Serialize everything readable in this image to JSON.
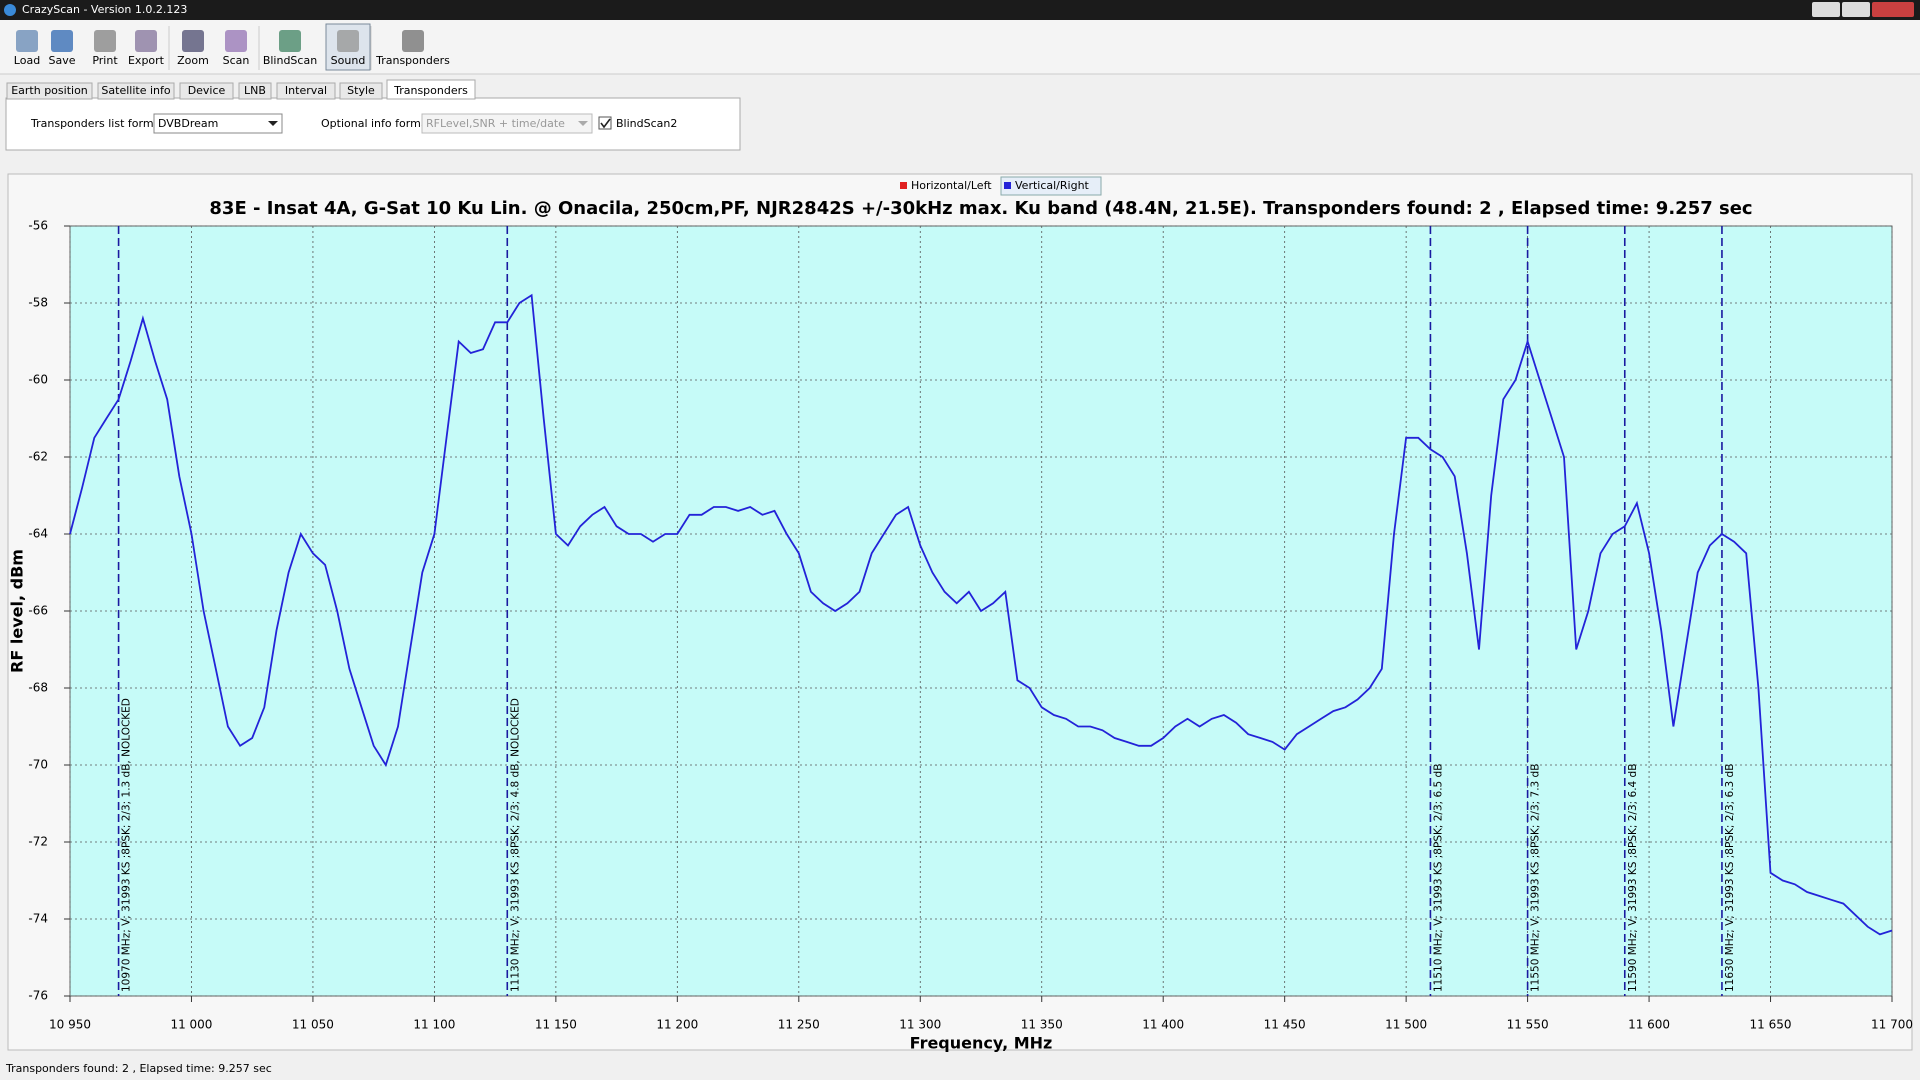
{
  "window": {
    "title": "CrazyScan - Version 1.0.2.123"
  },
  "toolbar": [
    "Load",
    "Save",
    "Print",
    "Export",
    "Zoom",
    "Scan",
    "BlindScan",
    "Sound",
    "Transponders"
  ],
  "tabs": [
    "Earth position",
    "Satellite info",
    "Device",
    "LNB",
    "Interval",
    "Style",
    "Transponders"
  ],
  "settings": {
    "list_format_label": "Transponders list format",
    "list_format_value": "DVBDream",
    "info_format_label": "Optional info format",
    "info_format_value": "RFLevel,SNR + time/date",
    "checkbox_label": "BlindScan2"
  },
  "chart_data": {
    "type": "line",
    "title": "83E - Insat 4A, G-Sat 10  Ku Lin. @ Onacila, 250cm,PF, NJR2842S +/-30kHz max. Ku band (48.4N, 21.5E). Transponders found: 2 , Elapsed time: 9.257 sec",
    "x_label": "Frequency, MHz",
    "y_label": "RF level, dBm",
    "x": [
      10950,
      10955,
      10960,
      10965,
      10970,
      10975,
      10980,
      10985,
      10990,
      10995,
      11000,
      11005,
      11010,
      11015,
      11020,
      11025,
      11030,
      11035,
      11040,
      11045,
      11050,
      11055,
      11060,
      11065,
      11070,
      11075,
      11080,
      11085,
      11090,
      11095,
      11100,
      11105,
      11110,
      11115,
      11120,
      11125,
      11130,
      11135,
      11140,
      11145,
      11150,
      11155,
      11160,
      11165,
      11170,
      11175,
      11180,
      11185,
      11190,
      11195,
      11200,
      11205,
      11210,
      11215,
      11220,
      11225,
      11230,
      11235,
      11240,
      11245,
      11250,
      11255,
      11260,
      11265,
      11270,
      11275,
      11280,
      11285,
      11290,
      11295,
      11300,
      11305,
      11310,
      11315,
      11320,
      11325,
      11330,
      11335,
      11340,
      11345,
      11350,
      11355,
      11360,
      11365,
      11370,
      11375,
      11380,
      11385,
      11390,
      11395,
      11400,
      11405,
      11410,
      11415,
      11420,
      11425,
      11430,
      11435,
      11440,
      11445,
      11450,
      11455,
      11460,
      11465,
      11470,
      11475,
      11480,
      11485,
      11490,
      11495,
      11500,
      11505,
      11510,
      11515,
      11520,
      11525,
      11530,
      11535,
      11540,
      11545,
      11550,
      11555,
      11560,
      11565,
      11570,
      11575,
      11580,
      11585,
      11590,
      11595,
      11600,
      11605,
      11610,
      11615,
      11620,
      11625,
      11630,
      11635,
      11640,
      11645,
      11650,
      11655,
      11660,
      11665,
      11670,
      11675,
      11680,
      11685,
      11690,
      11695,
      11700
    ],
    "series": [
      {
        "name": "Vertical/Right",
        "color": "#2323d8",
        "values": [
          -64,
          -62.8,
          -61.5,
          -61,
          -60.5,
          -59.5,
          -58.4,
          -59.5,
          -60.5,
          -62.5,
          -64,
          -66,
          -67.5,
          -69,
          -69.5,
          -69.3,
          -68.5,
          -66.5,
          -65,
          -64,
          -64.5,
          -64.8,
          -66,
          -67.5,
          -68.5,
          -69.5,
          -70,
          -69,
          -67,
          -65,
          -64,
          -61.5,
          -59,
          -59.3,
          -59.2,
          -58.5,
          -58.5,
          -58,
          -57.8,
          -61,
          -64,
          -64.3,
          -63.8,
          -63.5,
          -63.3,
          -63.8,
          -64,
          -64,
          -64.2,
          -64,
          -64,
          -63.5,
          -63.5,
          -63.3,
          -63.3,
          -63.4,
          -63.3,
          -63.5,
          -63.4,
          -64,
          -64.5,
          -65.5,
          -65.8,
          -66,
          -65.8,
          -65.5,
          -64.5,
          -64,
          -63.5,
          -63.3,
          -64.3,
          -65,
          -65.5,
          -65.8,
          -65.5,
          -66,
          -65.8,
          -65.5,
          -67.8,
          -68,
          -68.5,
          -68.7,
          -68.8,
          -69,
          -69,
          -69.1,
          -69.3,
          -69.4,
          -69.5,
          -69.5,
          -69.3,
          -69,
          -68.8,
          -69,
          -68.8,
          -68.7,
          -68.9,
          -69.2,
          -69.3,
          -69.4,
          -69.6,
          -69.2,
          -69,
          -68.8,
          -68.6,
          -68.5,
          -68.3,
          -68,
          -67.5,
          -64,
          -61.5,
          -61.5,
          -61.8,
          -62,
          -62.5,
          -64.5,
          -67,
          -63,
          -60.5,
          -60,
          -59,
          -60,
          -61,
          -62,
          -67,
          -66,
          -64.5,
          -64,
          -63.8,
          -63.2,
          -64.5,
          -66.5,
          -69,
          -67,
          -65,
          -64.3,
          -64,
          -64.2,
          -64.5,
          -68,
          -72.8,
          -73,
          -73.1,
          -73.3,
          -73.4,
          -73.5,
          -73.6,
          -73.9,
          -74.2,
          -74.4,
          -74.3
        ]
      }
    ],
    "inactive_series": [
      {
        "name": "Horizontal/Left",
        "color": "#e02020"
      }
    ],
    "markers": [
      {
        "x": 10970,
        "label": "10970 MHz; V; 31993 KS ;8PSK; 2/3; 1.3 dB, NOLOCKED"
      },
      {
        "x": 11130,
        "label": "11130 MHz; V; 31993 KS ;8PSK; 2/3; 4.8 dB, NOLOCKED"
      },
      {
        "x": 11510,
        "label": "11510 MHz; V; 31993 KS ;8PSK; 2/3; 6.5 dB"
      },
      {
        "x": 11550,
        "label": "11550 MHz; V; 31993 KS ;8PSK; 2/3; 7.3 dB"
      },
      {
        "x": 11590,
        "label": "11590 MHz; V; 31993 KS ;8PSK; 2/3; 6.4 dB"
      },
      {
        "x": 11630,
        "label": "11630 MHz; V; 31993 KS ;8PSK; 2/3; 6.3 dB"
      }
    ],
    "xlim": [
      10950,
      11700
    ],
    "ylim": [
      -76,
      -56
    ],
    "xticks": [
      {
        "value": 10950,
        "label": "10 950"
      },
      {
        "value": 11000,
        "label": "11 000"
      },
      {
        "value": 11050,
        "label": "11 050"
      },
      {
        "value": 11100,
        "label": "11 100"
      },
      {
        "value": 11150,
        "label": "11 150"
      },
      {
        "value": 11200,
        "label": "11 200"
      },
      {
        "value": 11250,
        "label": "11 250"
      },
      {
        "value": 11300,
        "label": "11 300"
      },
      {
        "value": 11350,
        "label": "11 350"
      },
      {
        "value": 11400,
        "label": "11 400"
      },
      {
        "value": 11450,
        "label": "11 450"
      },
      {
        "value": 11500,
        "label": "11 500"
      },
      {
        "value": 11550,
        "label": "11 550"
      },
      {
        "value": 11600,
        "label": "11 600"
      },
      {
        "value": 11650,
        "label": "11 650"
      },
      {
        "value": 11700,
        "label": "11 700"
      }
    ],
    "yticks": [
      -56,
      -58,
      -60,
      -62,
      -64,
      -66,
      -68,
      -70,
      -72,
      -74,
      -76
    ],
    "grid": true,
    "plot_background": "#c6fbf8"
  },
  "status": "Transponders found: 2 , Elapsed time: 9.257 sec"
}
